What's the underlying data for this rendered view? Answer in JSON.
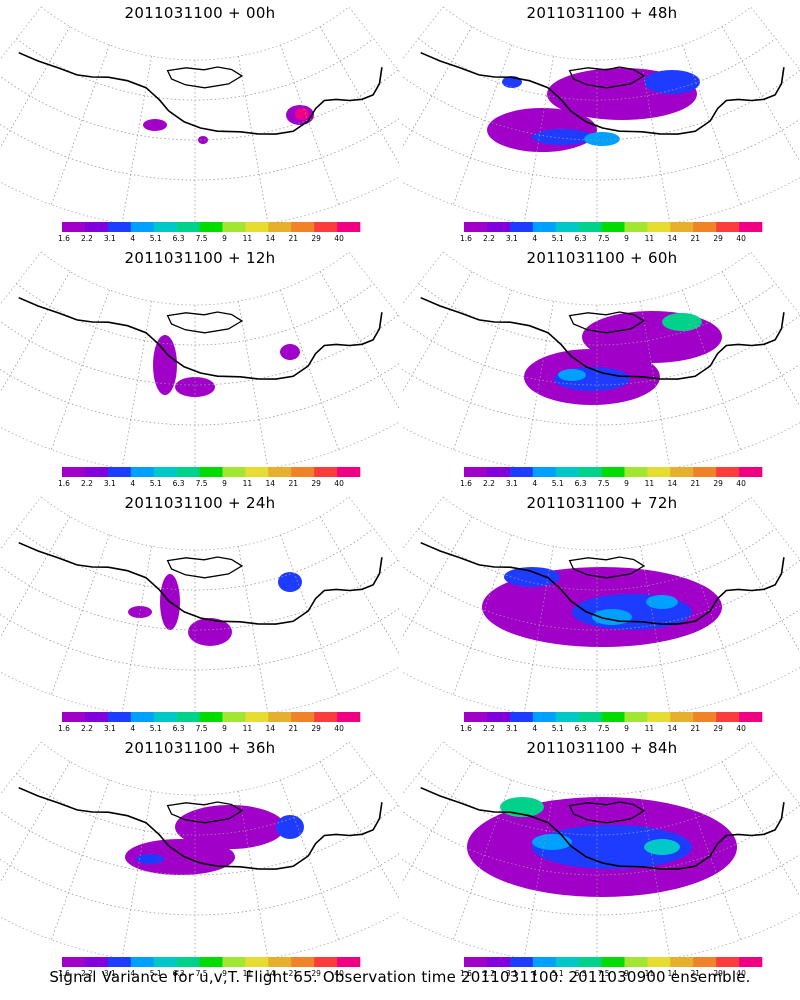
{
  "panels": [
    {
      "title": "2011031100 + 00h",
      "lead_hours": 0
    },
    {
      "title": "2011031100 + 48h",
      "lead_hours": 48
    },
    {
      "title": "2011031100 + 12h",
      "lead_hours": 12
    },
    {
      "title": "2011031100 + 60h",
      "lead_hours": 60
    },
    {
      "title": "2011031100 + 24h",
      "lead_hours": 24
    },
    {
      "title": "2011031100 + 72h",
      "lead_hours": 72
    },
    {
      "title": "2011031100 + 36h",
      "lead_hours": 36
    },
    {
      "title": "2011031100 + 84h",
      "lead_hours": 84
    }
  ],
  "colorbar": {
    "labels": [
      "1.6",
      "2.2",
      "3.1",
      "4",
      "5.1",
      "6.3",
      "7.5",
      "9",
      "11",
      "14",
      "21",
      "29",
      "40"
    ],
    "colors": [
      "#a000c8",
      "#8200dc",
      "#1e3cff",
      "#00a0ff",
      "#00c8c8",
      "#00d28c",
      "#00dc00",
      "#a0e632",
      "#e6dc32",
      "#e6af2d",
      "#f08228",
      "#fa3c3c",
      "#f00082"
    ]
  },
  "caption": "Signal Variance for u,v,T. Flight 65. Observation time 2011031100. 2011030900 ensemble."
}
